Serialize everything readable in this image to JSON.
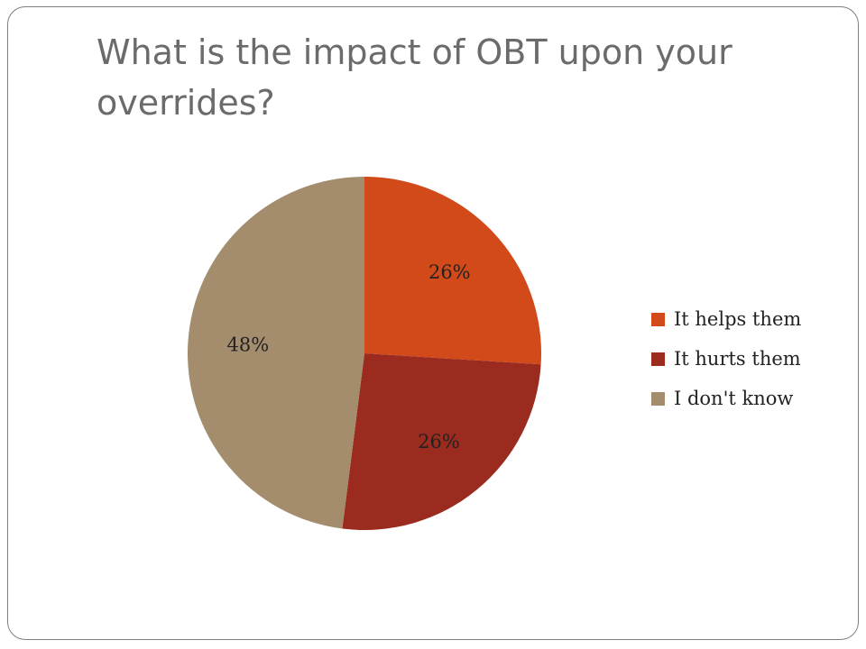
{
  "slide": {
    "title": "What is the impact of OBT upon your overrides?"
  },
  "chart_data": {
    "type": "pie",
    "title": "",
    "categories": [
      "It helps them",
      "It hurts them",
      "I don't know"
    ],
    "values": [
      26,
      26,
      48
    ],
    "labels": [
      "26%",
      "26%",
      "48%"
    ],
    "colors": [
      "#d24a1a",
      "#9a2b1e",
      "#a38d6c"
    ],
    "start_angle_deg": 0,
    "direction": "clockwise",
    "legend_position": "right"
  }
}
